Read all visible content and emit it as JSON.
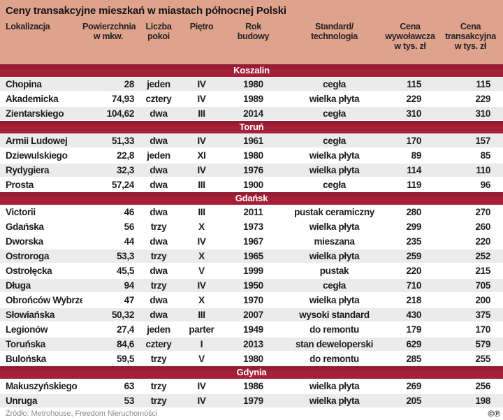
{
  "title": "Ceny transakcyjne mieszkań w miastach północnej Polski",
  "columns": [
    {
      "id": "lokalizacja",
      "label": "Lokalizacja"
    },
    {
      "id": "powierzchnia",
      "label": "Powierzchnia\nw mkw."
    },
    {
      "id": "liczba-pokoi",
      "label": "Liczba\npokoi"
    },
    {
      "id": "pietro",
      "label": "Piętro"
    },
    {
      "id": "rok-budowy",
      "label": "Rok\nbudowy"
    },
    {
      "id": "standard",
      "label": "Standard/\ntechnologia"
    },
    {
      "id": "cena-wywolawcza",
      "label": "Cena\nwywoławcza\nw tys. zł"
    },
    {
      "id": "cena-transakcyjna",
      "label": "Cena\ntransakcyjna\nw tys. zł"
    }
  ],
  "sections": [
    {
      "city": "Koszalin",
      "rows": [
        {
          "shaded": true,
          "cells": [
            "Chopina",
            "28",
            "jeden",
            "IV",
            "1980",
            "cegła",
            "115",
            "115"
          ]
        },
        {
          "shaded": false,
          "cells": [
            "Akademicka",
            "74,93",
            "cztery",
            "IV",
            "1989",
            "wielka płyta",
            "229",
            "229"
          ]
        },
        {
          "shaded": true,
          "cells": [
            "Zientarskiego",
            "104,62",
            "dwa",
            "III",
            "2014",
            "cegła",
            "310",
            "310"
          ]
        }
      ]
    },
    {
      "city": "Toruń",
      "rows": [
        {
          "shaded": true,
          "cells": [
            "Armii Ludowej",
            "51,33",
            "dwa",
            "IV",
            "1961",
            "cegła",
            "170",
            "157"
          ]
        },
        {
          "shaded": false,
          "cells": [
            "Dziewulskiego",
            "22,8",
            "jeden",
            "XI",
            "1980",
            "wielka płyta",
            "89",
            "85"
          ]
        },
        {
          "shaded": true,
          "cells": [
            "Rydygiera",
            "32,3",
            "dwa",
            "IV",
            "1976",
            "wielka płyta",
            "114",
            "110"
          ]
        },
        {
          "shaded": false,
          "cells": [
            "Prosta",
            "57,24",
            "dwa",
            "III",
            "1900",
            "cegła",
            "119",
            "96"
          ]
        }
      ]
    },
    {
      "city": "Gdańsk",
      "rows": [
        {
          "shaded": false,
          "cells": [
            "Victorii",
            "46",
            "dwa",
            "III",
            "2011",
            "pustak ceramiczny",
            "280",
            "270"
          ]
        },
        {
          "shaded": false,
          "cells": [
            "Gdańska",
            "56",
            "trzy",
            "X",
            "1973",
            "wielka płyta",
            "299",
            "260"
          ]
        },
        {
          "shaded": false,
          "cells": [
            "Dworska",
            "44",
            "dwa",
            "IV",
            "1967",
            "mieszana",
            "235",
            "220"
          ]
        },
        {
          "shaded": true,
          "cells": [
            "Ostroroga",
            "53,3",
            "trzy",
            "X",
            "1965",
            "wielka płyta",
            "259",
            "252"
          ]
        },
        {
          "shaded": false,
          "cells": [
            "Ostrołęcka",
            "45,5",
            "dwa",
            "V",
            "1999",
            "pustak",
            "220",
            "215"
          ]
        },
        {
          "shaded": true,
          "cells": [
            "Długa",
            "94",
            "trzy",
            "IV",
            "1950",
            "cegła",
            "710",
            "705"
          ]
        },
        {
          "shaded": false,
          "cells": [
            "Obrońców Wybrzeża",
            "47",
            "dwa",
            "X",
            "1970",
            "wielka płyta",
            "218",
            "200"
          ]
        },
        {
          "shaded": true,
          "cells": [
            "Słowiańska",
            "50,32",
            "dwa",
            "III",
            "2007",
            "wysoki standard",
            "430",
            "375"
          ]
        },
        {
          "shaded": false,
          "cells": [
            "Legionów",
            "27,4",
            "jeden",
            "parter",
            "1949",
            "do remontu",
            "179",
            "170"
          ]
        },
        {
          "shaded": true,
          "cells": [
            "Toruńska",
            "84,6",
            "cztery",
            "I",
            "2013",
            "stan deweloperski",
            "629",
            "579"
          ]
        },
        {
          "shaded": false,
          "cells": [
            "Bulońska",
            "59,5",
            "trzy",
            "V",
            "1980",
            "do remontu",
            "285",
            "255"
          ]
        }
      ]
    },
    {
      "city": "Gdynia",
      "rows": [
        {
          "shaded": false,
          "cells": [
            "Makuszyńskiego",
            "63",
            "trzy",
            "IV",
            "1986",
            "wielka płyta",
            "269",
            "256"
          ]
        },
        {
          "shaded": true,
          "cells": [
            "Unruga",
            "53",
            "trzy",
            "IV",
            "1979",
            "wielka płyta",
            "205",
            "198"
          ]
        }
      ]
    }
  ],
  "footer": {
    "source": "Źródło: Metrohouse, Freedom Nieruchomości",
    "rights": "©℗"
  },
  "colors": {
    "header_bg": "#dfa28d",
    "band_bg": "#a72039",
    "band_bg_dark": "#8f1b30",
    "stripe": "#ebebeb",
    "text": "#1c1c1c",
    "footer_text": "#8c8c8c"
  }
}
